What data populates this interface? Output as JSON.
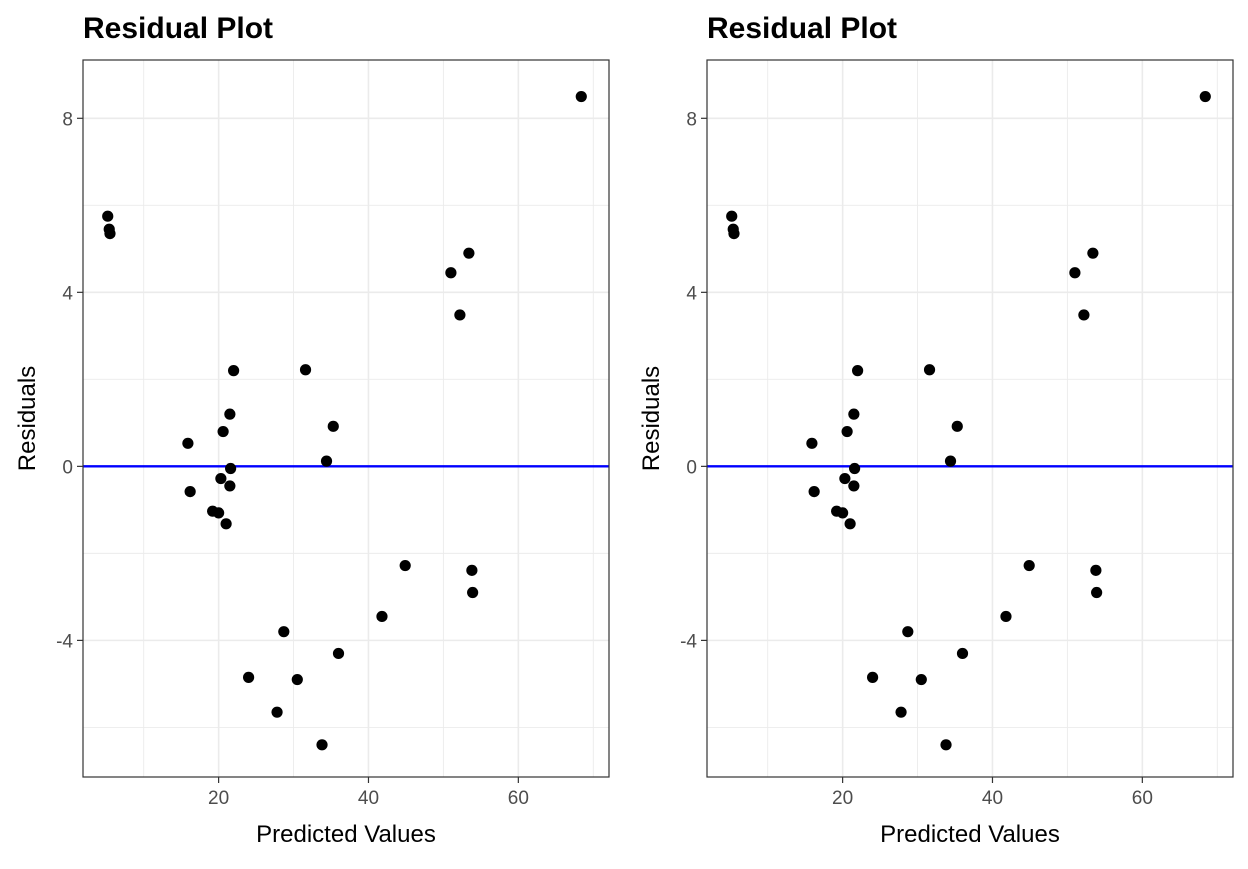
{
  "chart_data": [
    {
      "type": "scatter",
      "title": "Residual Plot",
      "xlabel": "Predicted Values",
      "ylabel": "Residuals",
      "xlim": [
        1.9,
        72.1
      ],
      "ylim": [
        -7.14,
        9.34
      ],
      "xticks": [
        20,
        40,
        60
      ],
      "yticks": [
        -4,
        0,
        4,
        8
      ],
      "xtick_labels": [
        "20",
        "40",
        "60"
      ],
      "ytick_labels": [
        "-4",
        "0",
        "4",
        "8"
      ],
      "grid": true,
      "reference_line": {
        "y": 0,
        "color": "#0000ff"
      },
      "point_color": "#000000",
      "points": [
        {
          "x": 5.2,
          "y": 5.75
        },
        {
          "x": 5.4,
          "y": 5.45
        },
        {
          "x": 5.5,
          "y": 5.35
        },
        {
          "x": 68.4,
          "y": 8.5
        },
        {
          "x": 51.0,
          "y": 4.45
        },
        {
          "x": 53.4,
          "y": 4.9
        },
        {
          "x": 52.2,
          "y": 3.48
        },
        {
          "x": 22.0,
          "y": 2.2
        },
        {
          "x": 31.6,
          "y": 2.22
        },
        {
          "x": 21.5,
          "y": 1.2
        },
        {
          "x": 35.3,
          "y": 0.92
        },
        {
          "x": 20.6,
          "y": 0.8
        },
        {
          "x": 15.9,
          "y": 0.53
        },
        {
          "x": 34.4,
          "y": 0.12
        },
        {
          "x": 21.6,
          "y": -0.05
        },
        {
          "x": 20.3,
          "y": -0.28
        },
        {
          "x": 21.5,
          "y": -0.45
        },
        {
          "x": 16.2,
          "y": -0.58
        },
        {
          "x": 19.2,
          "y": -1.03
        },
        {
          "x": 20.0,
          "y": -1.07
        },
        {
          "x": 21.0,
          "y": -1.32
        },
        {
          "x": 44.9,
          "y": -2.28
        },
        {
          "x": 53.8,
          "y": -2.39
        },
        {
          "x": 53.9,
          "y": -2.9
        },
        {
          "x": 41.8,
          "y": -3.45
        },
        {
          "x": 28.7,
          "y": -3.8
        },
        {
          "x": 36.0,
          "y": -4.3
        },
        {
          "x": 24.0,
          "y": -4.85
        },
        {
          "x": 30.5,
          "y": -4.9
        },
        {
          "x": 27.8,
          "y": -5.65
        },
        {
          "x": 33.8,
          "y": -6.4
        }
      ]
    },
    {
      "type": "scatter",
      "title": "Residual Plot",
      "xlabel": "Predicted Values",
      "ylabel": "Residuals",
      "xlim": [
        1.9,
        72.1
      ],
      "ylim": [
        -7.14,
        9.34
      ],
      "xticks": [
        20,
        40,
        60
      ],
      "yticks": [
        -4,
        0,
        4,
        8
      ],
      "xtick_labels": [
        "20",
        "40",
        "60"
      ],
      "ytick_labels": [
        "-4",
        "0",
        "4",
        "8"
      ],
      "grid": true,
      "reference_line": {
        "y": 0,
        "color": "#0000ff"
      },
      "point_color": "#000000",
      "points": [
        {
          "x": 5.2,
          "y": 5.75
        },
        {
          "x": 5.4,
          "y": 5.45
        },
        {
          "x": 5.5,
          "y": 5.35
        },
        {
          "x": 68.4,
          "y": 8.5
        },
        {
          "x": 51.0,
          "y": 4.45
        },
        {
          "x": 53.4,
          "y": 4.9
        },
        {
          "x": 52.2,
          "y": 3.48
        },
        {
          "x": 22.0,
          "y": 2.2
        },
        {
          "x": 31.6,
          "y": 2.22
        },
        {
          "x": 21.5,
          "y": 1.2
        },
        {
          "x": 35.3,
          "y": 0.92
        },
        {
          "x": 20.6,
          "y": 0.8
        },
        {
          "x": 15.9,
          "y": 0.53
        },
        {
          "x": 34.4,
          "y": 0.12
        },
        {
          "x": 21.6,
          "y": -0.05
        },
        {
          "x": 20.3,
          "y": -0.28
        },
        {
          "x": 21.5,
          "y": -0.45
        },
        {
          "x": 16.2,
          "y": -0.58
        },
        {
          "x": 19.2,
          "y": -1.03
        },
        {
          "x": 20.0,
          "y": -1.07
        },
        {
          "x": 21.0,
          "y": -1.32
        },
        {
          "x": 44.9,
          "y": -2.28
        },
        {
          "x": 53.8,
          "y": -2.39
        },
        {
          "x": 53.9,
          "y": -2.9
        },
        {
          "x": 41.8,
          "y": -3.45
        },
        {
          "x": 28.7,
          "y": -3.8
        },
        {
          "x": 36.0,
          "y": -4.3
        },
        {
          "x": 24.0,
          "y": -4.85
        },
        {
          "x": 30.5,
          "y": -4.9
        },
        {
          "x": 27.8,
          "y": -5.65
        },
        {
          "x": 33.8,
          "y": -6.4
        }
      ]
    }
  ]
}
